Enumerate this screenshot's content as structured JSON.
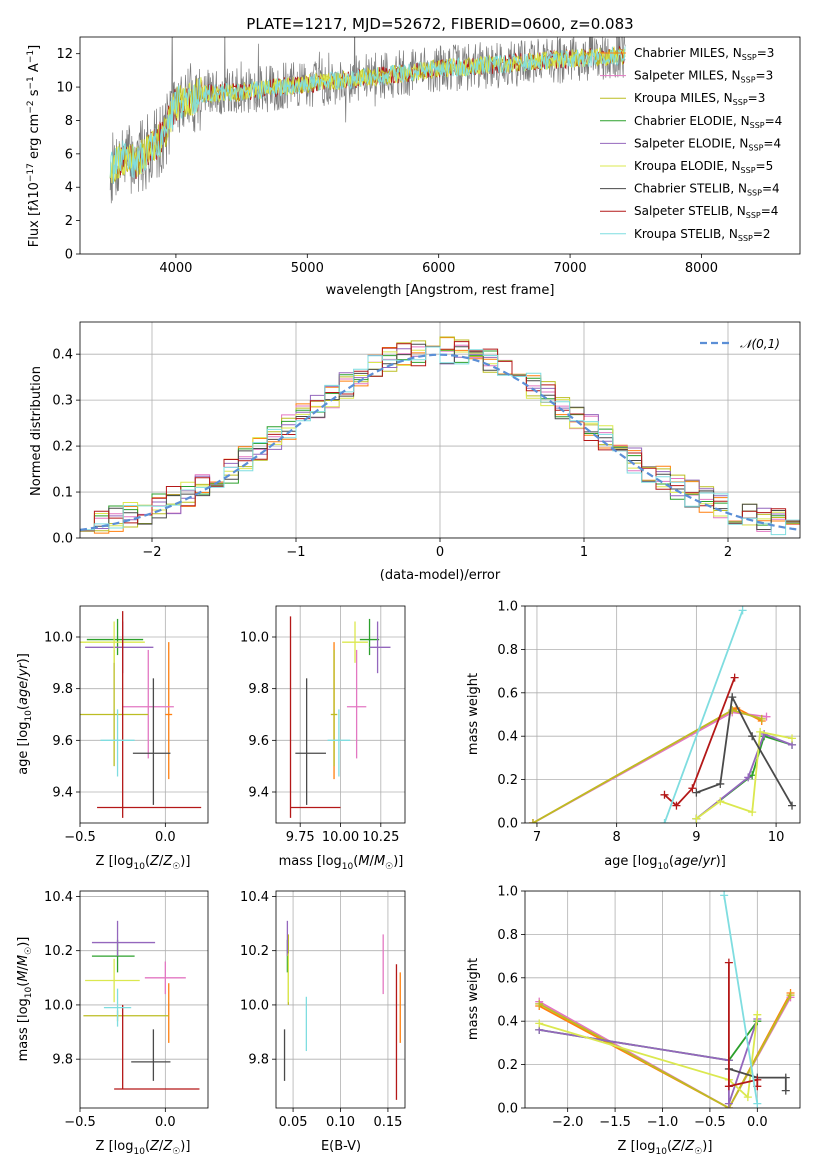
{
  "title": "PLATE=1217, MJD=52672, FIBERID=0600, z=0.083",
  "models": [
    {
      "name": "Chabrier MILES",
      "nssp": "3",
      "color": "#ff7f0e"
    },
    {
      "name": "Salpeter MILES",
      "nssp": "3",
      "color": "#e377c2"
    },
    {
      "name": "Kroupa MILES",
      "nssp": "3",
      "color": "#bcbd22"
    },
    {
      "name": "Chabrier ELODIE",
      "nssp": "4",
      "color": "#2ca02c"
    },
    {
      "name": "Salpeter ELODIE",
      "nssp": "4",
      "color": "#9467bd"
    },
    {
      "name": "Kroupa ELODIE",
      "nssp": "5",
      "color": "#dbe84f"
    },
    {
      "name": "Chabrier STELIB",
      "nssp": "4",
      "color": "#4a4a4a"
    },
    {
      "name": "Salpeter STELIB",
      "nssp": "4",
      "color": "#b41818"
    },
    {
      "name": "Kroupa STELIB",
      "nssp": "2",
      "color": "#7fdde0"
    }
  ],
  "chart_data": [
    {
      "id": "spectrum",
      "type": "line",
      "xlabel": "wavelength [Angstrom, rest frame]",
      "ylabel": "Flux [f_λ 10^-17 erg cm^-2 s^-1 A^-1]",
      "xlim": [
        3270,
        8750
      ],
      "ylim": [
        0,
        13
      ],
      "xticks": [
        4000,
        5000,
        6000,
        7000,
        8000
      ],
      "yticks": [
        0,
        2,
        4,
        6,
        8,
        10,
        12
      ],
      "continuum": {
        "x": [
          3500,
          3600,
          3700,
          3800,
          3900,
          4000,
          4200,
          4500,
          5000,
          5500,
          6000,
          6500,
          7000,
          7400
        ],
        "y": [
          5.0,
          5.8,
          5.5,
          6.3,
          7.0,
          9.0,
          9.6,
          9.7,
          10.2,
          10.6,
          11.1,
          11.4,
          11.7,
          11.9
        ]
      },
      "legend_position": "upper right"
    },
    {
      "id": "residuals",
      "type": "line",
      "xlabel": "(data-model)/error",
      "ylabel": "Normed distribution",
      "xlim": [
        -2.5,
        2.5
      ],
      "ylim": [
        0,
        0.47
      ],
      "xticks": [
        -2,
        -1,
        0,
        1,
        2
      ],
      "yticks": [
        0.0,
        0.1,
        0.2,
        0.3,
        0.4
      ],
      "reference": {
        "name": "𝒩(0,1)",
        "mu": 0,
        "sigma": 1
      },
      "grid": true
    },
    {
      "id": "age_vs_Z",
      "type": "scatter",
      "xlabel": "Z [log10(Z/Z☉)]",
      "ylabel": "age [log10(age/yr)]",
      "xlim": [
        -0.5,
        0.25
      ],
      "ylim": [
        9.28,
        10.12
      ],
      "xticks": [
        -0.5,
        0.0
      ],
      "yticks": [
        9.4,
        9.6,
        9.8,
        10.0
      ],
      "grid": true,
      "points": [
        {
          "model": 0,
          "x": 0.02,
          "y": 9.7,
          "xerr": [
            0.02,
            0.02
          ],
          "yerr": [
            0.25,
            0.28
          ]
        },
        {
          "model": 1,
          "x": -0.1,
          "y": 9.73,
          "xerr": [
            0.15,
            0.15
          ],
          "yerr": [
            0.2,
            0.22
          ]
        },
        {
          "model": 2,
          "x": -0.3,
          "y": 9.7,
          "xerr": [
            0.2,
            0.2
          ],
          "yerr": [
            0.2,
            0.25
          ]
        },
        {
          "model": 3,
          "x": -0.28,
          "y": 9.99,
          "xerr": [
            0.18,
            0.15
          ],
          "yerr": [
            0.06,
            0.08
          ]
        },
        {
          "model": 4,
          "x": -0.25,
          "y": 9.96,
          "xerr": [
            0.22,
            0.18
          ],
          "yerr": [
            0.1,
            0.1
          ]
        },
        {
          "model": 5,
          "x": -0.3,
          "y": 9.98,
          "xerr": [
            0.2,
            0.18
          ],
          "yerr": [
            0.08,
            0.08
          ]
        },
        {
          "model": 6,
          "x": -0.07,
          "y": 9.55,
          "xerr": [
            0.12,
            0.1
          ],
          "yerr": [
            0.2,
            0.29
          ]
        },
        {
          "model": 7,
          "x": -0.25,
          "y": 9.34,
          "xerr": [
            0.15,
            0.46
          ],
          "yerr": [
            0.04,
            0.76
          ]
        },
        {
          "model": 8,
          "x": -0.28,
          "y": 9.6,
          "xerr": [
            0.1,
            0.1
          ],
          "yerr": [
            0.14,
            0.12
          ]
        }
      ]
    },
    {
      "id": "age_vs_mass",
      "type": "scatter",
      "xlabel": "mass [log10(M/M☉)]",
      "ylabel": "",
      "xlim": [
        9.6,
        10.4
      ],
      "ylim": [
        9.28,
        10.12
      ],
      "xticks": [
        9.75,
        10.0,
        10.25
      ],
      "yticks": [
        9.4,
        9.6,
        9.8,
        10.0
      ],
      "grid": true,
      "points": [
        {
          "model": 0,
          "x": 9.96,
          "y": 9.7,
          "xerr": [
            0.0,
            0.0
          ],
          "yerr": [
            0.25,
            0.28
          ]
        },
        {
          "model": 1,
          "x": 10.1,
          "y": 9.73,
          "xerr": [
            0.06,
            0.06
          ],
          "yerr": [
            0.2,
            0.22
          ]
        },
        {
          "model": 2,
          "x": 9.96,
          "y": 9.7,
          "xerr": [
            0.02,
            0.02
          ],
          "yerr": [
            0.2,
            0.25
          ]
        },
        {
          "model": 3,
          "x": 10.18,
          "y": 9.99,
          "xerr": [
            0.06,
            0.06
          ],
          "yerr": [
            0.06,
            0.08
          ]
        },
        {
          "model": 4,
          "x": 10.23,
          "y": 9.96,
          "xerr": [
            0.05,
            0.08
          ],
          "yerr": [
            0.1,
            0.1
          ]
        },
        {
          "model": 5,
          "x": 10.09,
          "y": 9.98,
          "xerr": [
            0.08,
            0.08
          ],
          "yerr": [
            0.08,
            0.08
          ]
        },
        {
          "model": 6,
          "x": 9.79,
          "y": 9.55,
          "xerr": [
            0.07,
            0.12
          ],
          "yerr": [
            0.2,
            0.29
          ]
        },
        {
          "model": 7,
          "x": 9.69,
          "y": 9.34,
          "xerr": [
            0.0,
            0.31
          ],
          "yerr": [
            0.04,
            0.74
          ]
        },
        {
          "model": 8,
          "x": 9.99,
          "y": 9.6,
          "xerr": [
            0.07,
            0.07
          ],
          "yerr": [
            0.14,
            0.12
          ]
        }
      ]
    },
    {
      "id": "massweight_vs_age",
      "type": "line",
      "xlabel": "age [log10(age/yr)]",
      "ylabel": "mass weight",
      "xlim": [
        6.85,
        10.3
      ],
      "ylim": [
        0,
        1.0
      ],
      "xticks": [
        7,
        8,
        9,
        10
      ],
      "yticks": [
        0.0,
        0.2,
        0.4,
        0.6,
        0.8,
        1.0
      ],
      "grid": true,
      "series": [
        {
          "model": 0,
          "x": [
            6.95,
            9.5,
            9.82
          ],
          "y": [
            0.0,
            0.53,
            0.47
          ]
        },
        {
          "model": 1,
          "x": [
            6.95,
            9.45,
            9.88
          ],
          "y": [
            0.0,
            0.51,
            0.49
          ]
        },
        {
          "model": 2,
          "x": [
            6.95,
            9.45,
            9.82
          ],
          "y": [
            0.0,
            0.52,
            0.48
          ]
        },
        {
          "model": 3,
          "x": [
            9.0,
            9.7,
            9.85,
            10.2
          ],
          "y": [
            0.02,
            0.22,
            0.4,
            0.36
          ]
        },
        {
          "model": 4,
          "x": [
            9.0,
            9.65,
            9.85,
            10.2
          ],
          "y": [
            0.02,
            0.21,
            0.41,
            0.36
          ]
        },
        {
          "model": 5,
          "x": [
            9.0,
            9.3,
            9.7,
            9.8,
            10.2
          ],
          "y": [
            0.02,
            0.1,
            0.05,
            0.42,
            0.39
          ]
        },
        {
          "model": 6,
          "x": [
            9.0,
            9.3,
            9.45,
            9.7,
            10.2
          ],
          "y": [
            0.14,
            0.18,
            0.58,
            0.4,
            0.08
          ]
        },
        {
          "model": 7,
          "x": [
            8.6,
            8.75,
            8.95,
            9.48
          ],
          "y": [
            0.13,
            0.08,
            0.16,
            0.67
          ]
        },
        {
          "model": 8,
          "x": [
            8.6,
            9.58
          ],
          "y": [
            0.0,
            0.98
          ]
        }
      ]
    },
    {
      "id": "mass_vs_Z",
      "type": "scatter",
      "xlabel": "Z [log10(Z/Z☉)]",
      "ylabel": "mass [log10(M/M☉)]",
      "xlim": [
        -0.5,
        0.25
      ],
      "ylim": [
        9.62,
        10.42
      ],
      "xticks": [
        -0.5,
        0.0
      ],
      "yticks": [
        9.8,
        10.0,
        10.2,
        10.4
      ],
      "grid": true,
      "points": [
        {
          "model": 0,
          "x": 0.02,
          "y": 9.96,
          "xerr": [
            0.0,
            0.0
          ],
          "yerr": [
            0.1,
            0.12
          ]
        },
        {
          "model": 1,
          "x": 0.0,
          "y": 10.1,
          "xerr": [
            0.12,
            0.12
          ],
          "yerr": [
            0.06,
            0.06
          ]
        },
        {
          "model": 2,
          "x": -0.28,
          "y": 9.96,
          "xerr": [
            0.2,
            0.3
          ],
          "yerr": [
            0.02,
            0.02
          ]
        },
        {
          "model": 3,
          "x": -0.28,
          "y": 10.18,
          "xerr": [
            0.15,
            0.1
          ],
          "yerr": [
            0.06,
            0.06
          ]
        },
        {
          "model": 4,
          "x": -0.28,
          "y": 10.23,
          "xerr": [
            0.15,
            0.22
          ],
          "yerr": [
            0.05,
            0.08
          ]
        },
        {
          "model": 5,
          "x": -0.3,
          "y": 10.09,
          "xerr": [
            0.17,
            0.15
          ],
          "yerr": [
            0.08,
            0.08
          ]
        },
        {
          "model": 6,
          "x": -0.07,
          "y": 9.79,
          "xerr": [
            0.13,
            0.1
          ],
          "yerr": [
            0.07,
            0.12
          ]
        },
        {
          "model": 7,
          "x": -0.25,
          "y": 9.69,
          "xerr": [
            0.05,
            0.45
          ],
          "yerr": [
            0.0,
            0.31
          ]
        },
        {
          "model": 8,
          "x": -0.28,
          "y": 9.99,
          "xerr": [
            0.08,
            0.08
          ],
          "yerr": [
            0.07,
            0.07
          ]
        }
      ]
    },
    {
      "id": "mass_vs_EBV",
      "type": "scatter",
      "xlabel": "E(B-V)",
      "ylabel": "",
      "xlim": [
        0.032,
        0.168
      ],
      "ylim": [
        9.62,
        10.42
      ],
      "xticks": [
        0.05,
        0.1,
        0.15
      ],
      "yticks": [
        9.8,
        10.0,
        10.2,
        10.4
      ],
      "grid": true,
      "points": [
        {
          "model": 0,
          "x": 0.163,
          "y": 9.96,
          "yerr": [
            0.1,
            0.16
          ]
        },
        {
          "model": 1,
          "x": 0.145,
          "y": 10.1,
          "yerr": [
            0.06,
            0.16
          ]
        },
        {
          "model": 2,
          "x": 0.045,
          "y": 10.1,
          "yerr": [
            0.1,
            0.16
          ]
        },
        {
          "model": 3,
          "x": 0.044,
          "y": 10.18,
          "yerr": [
            0.06,
            0.06
          ]
        },
        {
          "model": 4,
          "x": 0.044,
          "y": 10.23,
          "yerr": [
            0.05,
            0.08
          ]
        },
        {
          "model": 5,
          "x": 0.045,
          "y": 10.09,
          "yerr": [
            0.08,
            0.1
          ]
        },
        {
          "model": 6,
          "x": 0.041,
          "y": 9.81,
          "yerr": [
            0.09,
            0.1
          ]
        },
        {
          "model": 7,
          "x": 0.159,
          "y": 9.69,
          "yerr": [
            0.04,
            0.46
          ]
        },
        {
          "model": 8,
          "x": 0.064,
          "y": 9.93,
          "yerr": [
            0.1,
            0.1
          ]
        }
      ]
    },
    {
      "id": "massweight_vs_Z",
      "type": "line",
      "xlabel": "Z [log10(Z/Z☉)]",
      "ylabel": "mass weight",
      "xlim": [
        -2.45,
        0.45
      ],
      "ylim": [
        0,
        1.0
      ],
      "xticks": [
        -2.0,
        -1.5,
        -1.0,
        -0.5,
        0.0
      ],
      "yticks": [
        0.0,
        0.2,
        0.4,
        0.6,
        0.8,
        1.0
      ],
      "grid": true,
      "series": [
        {
          "model": 0,
          "x": [
            -2.3,
            -0.3,
            0.35
          ],
          "y": [
            0.47,
            0.0,
            0.53
          ]
        },
        {
          "model": 1,
          "x": [
            -2.3,
            -0.3,
            0.35
          ],
          "y": [
            0.49,
            0.0,
            0.51
          ]
        },
        {
          "model": 2,
          "x": [
            -2.3,
            -0.3,
            0.35
          ],
          "y": [
            0.48,
            0.0,
            0.52
          ]
        },
        {
          "model": 3,
          "x": [
            -2.3,
            -0.3,
            0.0
          ],
          "y": [
            0.36,
            0.22,
            0.4
          ]
        },
        {
          "model": 4,
          "x": [
            -2.3,
            -0.3,
            -0.3,
            0.0
          ],
          "y": [
            0.36,
            0.22,
            0.02,
            0.41
          ]
        },
        {
          "model": 5,
          "x": [
            -2.3,
            -0.3,
            -0.1,
            0.0
          ],
          "y": [
            0.39,
            0.13,
            0.05,
            0.43
          ]
        },
        {
          "model": 6,
          "x": [
            -0.3,
            0.0,
            0.3,
            0.3
          ],
          "y": [
            0.18,
            0.14,
            0.14,
            0.08
          ]
        },
        {
          "model": 7,
          "x": [
            -0.3,
            -0.3,
            0.0,
            0.0
          ],
          "y": [
            0.67,
            0.1,
            0.13,
            0.1
          ]
        },
        {
          "model": 8,
          "x": [
            -0.35,
            0.0
          ],
          "y": [
            0.98,
            0.02
          ]
        }
      ]
    }
  ]
}
